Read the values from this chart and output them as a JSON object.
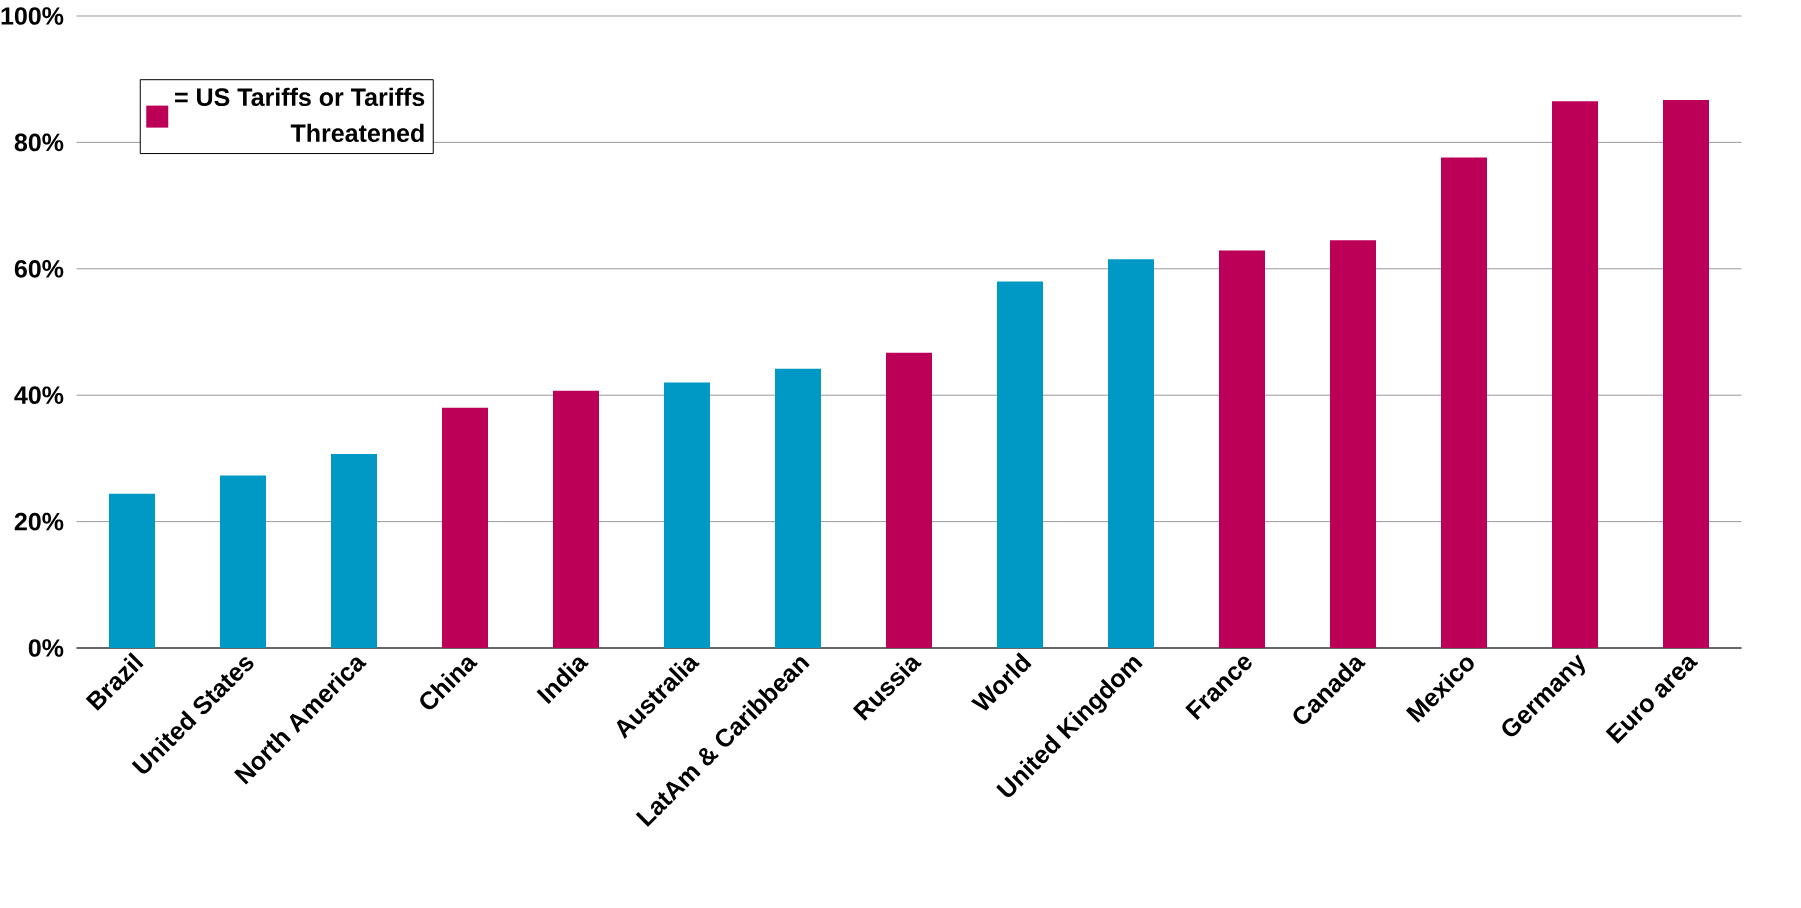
{
  "chart_data": {
    "type": "bar",
    "categories": [
      "Brazil",
      "United States",
      "North America",
      "China",
      "India",
      "Australia",
      "LatAm & Caribbean",
      "Russia",
      "World",
      "United Kingdom",
      "France",
      "Canada",
      "Mexico",
      "Germany",
      "Euro area"
    ],
    "series": [
      {
        "color": "#0099c6",
        "values": [
          24.4,
          27.3,
          30.7,
          null,
          null,
          42.0,
          44.2,
          null,
          58.0,
          61.5,
          null,
          null,
          null,
          null,
          null
        ]
      },
      {
        "name": "= US Tariffs or Tariffs Threatened",
        "color": "#bc0058",
        "values": [
          null,
          null,
          null,
          38.0,
          40.7,
          null,
          null,
          46.7,
          null,
          null,
          62.9,
          64.5,
          77.6,
          86.5,
          86.7
        ]
      }
    ],
    "ylim": [
      0,
      100
    ],
    "yticks": [
      {
        "value": 0,
        "label": "0%"
      },
      {
        "value": 20,
        "label": "20%"
      },
      {
        "value": 40,
        "label": "40%"
      },
      {
        "value": 60,
        "label": "60%"
      },
      {
        "value": 80,
        "label": "80%"
      },
      {
        "value": 100,
        "label": "100%"
      }
    ],
    "grid": "y",
    "legend": "top left"
  }
}
